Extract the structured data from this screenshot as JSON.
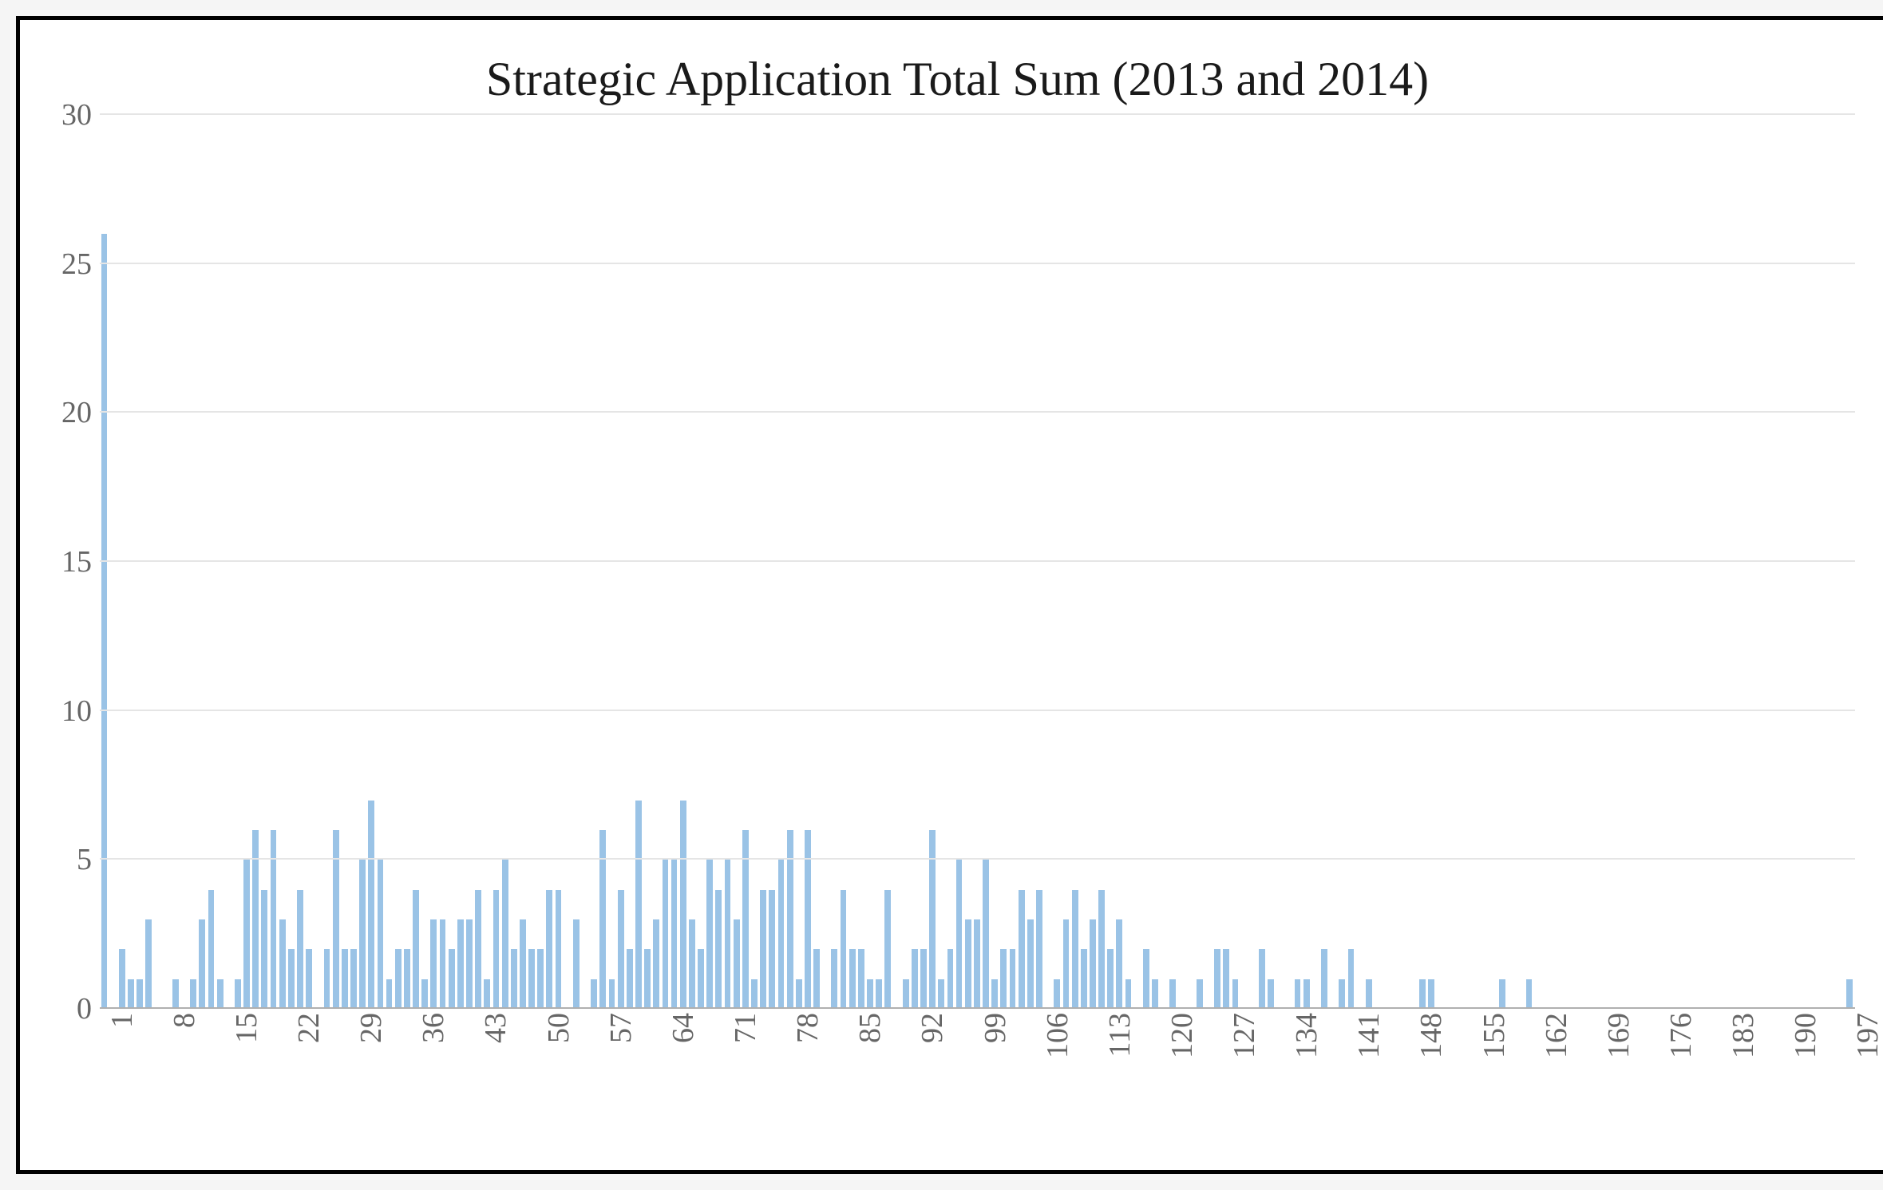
{
  "chart": {
    "type": "bar",
    "title": "Strategic Application Total Sum (2013 and 2014)",
    "title_fontsize": 60,
    "title_color": "#1a1a1a",
    "background_color": "#ffffff",
    "border_color": "#000000",
    "border_width": 5,
    "bar_color": "#9ac3e6",
    "grid_color": "#e5e5e5",
    "axis_label_color": "#666666",
    "axis_label_fontsize": 38,
    "ylim": [
      0,
      30
    ],
    "ytick_step": 5,
    "yticks": [
      0,
      5,
      10,
      15,
      20,
      25,
      30
    ],
    "x_tick_step": 7,
    "x_start": 1,
    "x_end": 197,
    "xticks": [
      1,
      8,
      15,
      22,
      29,
      36,
      43,
      50,
      57,
      64,
      71,
      78,
      85,
      92,
      99,
      106,
      113,
      120,
      127,
      134,
      141,
      148,
      155,
      162,
      169,
      176,
      183,
      190,
      197
    ],
    "values": [
      26,
      0,
      2,
      1,
      1,
      3,
      0,
      0,
      1,
      0,
      1,
      3,
      4,
      1,
      0,
      1,
      5,
      6,
      4,
      6,
      3,
      2,
      4,
      2,
      0,
      2,
      6,
      2,
      2,
      5,
      7,
      5,
      1,
      2,
      2,
      4,
      1,
      3,
      3,
      2,
      3,
      3,
      4,
      1,
      4,
      5,
      2,
      3,
      2,
      2,
      4,
      4,
      0,
      3,
      0,
      1,
      6,
      1,
      4,
      2,
      7,
      2,
      3,
      5,
      5,
      7,
      3,
      2,
      5,
      4,
      5,
      3,
      6,
      1,
      4,
      4,
      5,
      6,
      1,
      6,
      2,
      0,
      2,
      4,
      2,
      2,
      1,
      1,
      4,
      0,
      1,
      2,
      2,
      6,
      1,
      2,
      5,
      3,
      3,
      5,
      1,
      2,
      2,
      4,
      3,
      4,
      0,
      1,
      3,
      4,
      2,
      3,
      4,
      2,
      3,
      1,
      0,
      2,
      1,
      0,
      1,
      0,
      0,
      1,
      0,
      2,
      2,
      1,
      0,
      0,
      2,
      1,
      0,
      0,
      1,
      1,
      0,
      2,
      0,
      1,
      2,
      0,
      1,
      0,
      0,
      0,
      0,
      0,
      1,
      1,
      0,
      0,
      0,
      0,
      0,
      0,
      0,
      1,
      0,
      0,
      1,
      0,
      0,
      0,
      0,
      0,
      0,
      0,
      0,
      0,
      0,
      0,
      0,
      0,
      0,
      0,
      0,
      0,
      0,
      0,
      0,
      0,
      0,
      0,
      0,
      0,
      0,
      0,
      0,
      0,
      0,
      0,
      0,
      0,
      0,
      0,
      1
    ]
  }
}
